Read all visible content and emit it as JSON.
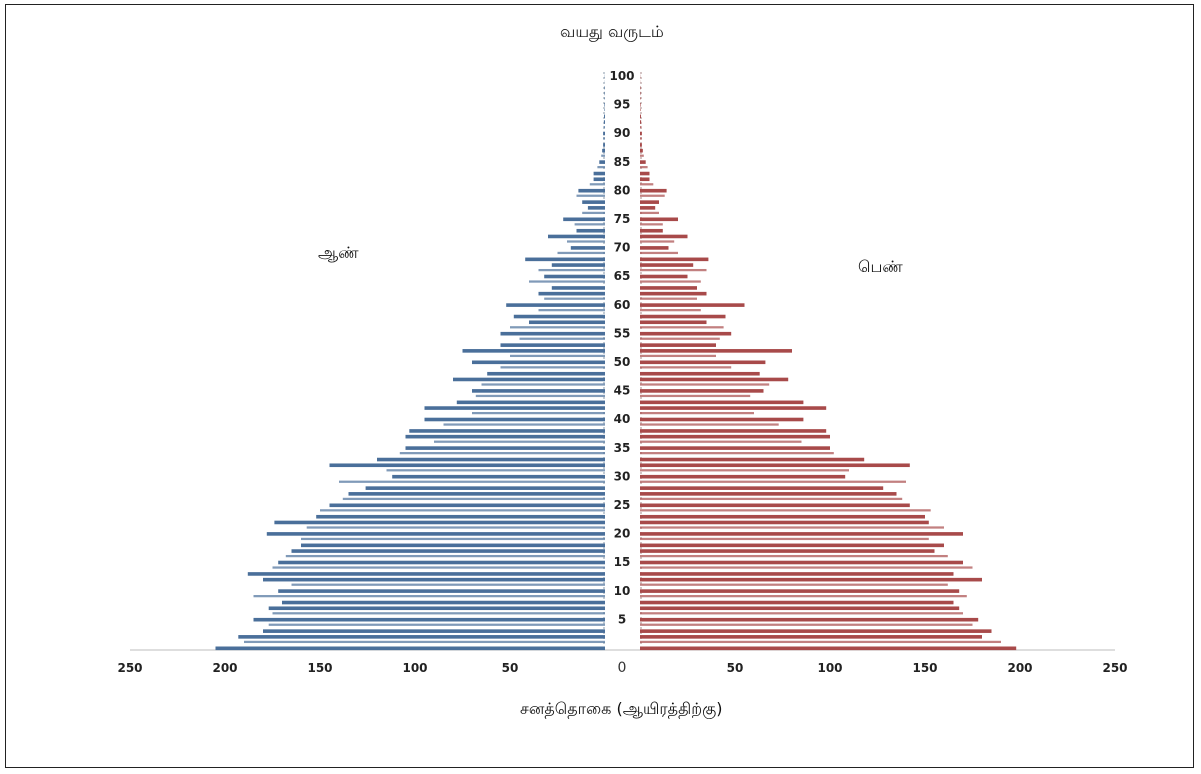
{
  "chart_data": {
    "type": "bar",
    "orientation": "horizontal-pyramid",
    "title": "வயது வருடம்",
    "xlabel": "சனத்தொகை (ஆயிரத்திற்கு)",
    "left_label": "ஆண்",
    "right_label": "பெண்",
    "center_tick": "0",
    "y_ticks": [
      "100",
      "95",
      "90",
      "85",
      "80",
      "75",
      "70",
      "65",
      "60",
      "55",
      "50",
      "45",
      "40",
      "35",
      "30",
      "25",
      "20",
      "15",
      "10",
      "5"
    ],
    "x_ticks_left": [
      "250",
      "200",
      "150",
      "100",
      "50"
    ],
    "x_ticks_right": [
      "50",
      "100",
      "150",
      "200",
      "250"
    ],
    "xlim": [
      0,
      250
    ],
    "ylim": [
      0,
      100
    ],
    "ages": [
      0,
      1,
      2,
      3,
      4,
      5,
      6,
      7,
      8,
      9,
      10,
      11,
      12,
      13,
      14,
      15,
      16,
      17,
      18,
      19,
      20,
      21,
      22,
      23,
      24,
      25,
      26,
      27,
      28,
      29,
      30,
      31,
      32,
      33,
      34,
      35,
      36,
      37,
      38,
      39,
      40,
      41,
      42,
      43,
      44,
      45,
      46,
      47,
      48,
      49,
      50,
      51,
      52,
      53,
      54,
      55,
      56,
      57,
      58,
      59,
      60,
      61,
      62,
      63,
      64,
      65,
      66,
      67,
      68,
      69,
      70,
      71,
      72,
      73,
      74,
      75,
      76,
      77,
      78,
      79,
      80,
      81,
      82,
      83,
      84,
      85,
      86,
      87,
      88,
      89,
      90,
      91,
      92,
      93,
      94,
      95,
      96,
      97,
      98,
      99,
      100
    ],
    "series": [
      {
        "name": "ஆண்",
        "color": "#4a6f9a",
        "values": [
          205,
          190,
          193,
          180,
          177,
          185,
          175,
          177,
          170,
          185,
          172,
          165,
          180,
          188,
          175,
          172,
          168,
          165,
          160,
          160,
          178,
          157,
          174,
          152,
          150,
          145,
          138,
          135,
          126,
          140,
          112,
          115,
          145,
          120,
          108,
          105,
          90,
          105,
          103,
          85,
          95,
          70,
          95,
          78,
          68,
          70,
          65,
          80,
          62,
          55,
          70,
          50,
          75,
          55,
          45,
          55,
          50,
          40,
          48,
          35,
          52,
          32,
          35,
          28,
          40,
          32,
          35,
          28,
          42,
          25,
          18,
          20,
          30,
          15,
          16,
          22,
          12,
          9,
          12,
          15,
          14,
          8,
          6,
          6,
          4,
          3,
          2,
          1.5,
          1,
          1,
          1,
          0.8,
          0.6,
          0.5,
          0.4,
          0.3,
          0.3,
          0.2,
          0.2,
          0.1,
          0.1
        ]
      },
      {
        "name": "பெண்",
        "color": "#a84a4a",
        "values": [
          198,
          190,
          180,
          185,
          175,
          178,
          170,
          168,
          165,
          172,
          168,
          162,
          180,
          165,
          175,
          170,
          162,
          155,
          160,
          152,
          170,
          160,
          152,
          150,
          153,
          142,
          138,
          135,
          128,
          140,
          108,
          110,
          142,
          118,
          102,
          100,
          85,
          100,
          98,
          73,
          86,
          60,
          98,
          86,
          58,
          65,
          68,
          78,
          63,
          48,
          66,
          40,
          80,
          40,
          42,
          48,
          44,
          35,
          45,
          32,
          55,
          30,
          35,
          30,
          32,
          25,
          35,
          28,
          36,
          20,
          15,
          18,
          25,
          12,
          12,
          20,
          10,
          8,
          10,
          13,
          14,
          7,
          5,
          5,
          4,
          3,
          2,
          1.5,
          1,
          1,
          1,
          0.8,
          0.6,
          0.5,
          0.4,
          0.3,
          0.3,
          0.2,
          0.2,
          0.1,
          0.1
        ]
      }
    ]
  }
}
